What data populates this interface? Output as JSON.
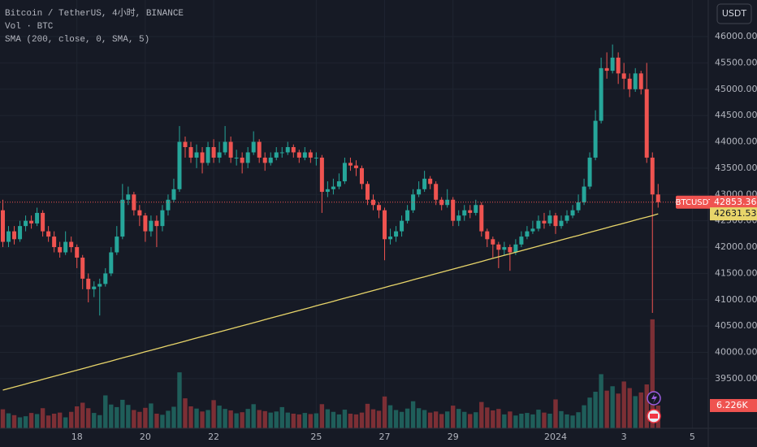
{
  "chart_data": {
    "type": "candlestick",
    "title": "Bitcoin / TetherUS, 4小时, BINANCE",
    "currency": "USDT",
    "symbol": "BTCUSDT",
    "up_color": "#26a69a",
    "down_color": "#ef5350",
    "open": [
      42700,
      42100,
      42300,
      42150,
      42400,
      42500,
      42450,
      42650,
      42300,
      42200,
      42000,
      41900,
      42100,
      42000,
      41800,
      41400,
      41200,
      41250,
      41300,
      41500,
      41900,
      42200,
      42900,
      43000,
      42700,
      42600,
      42300,
      42500,
      42400,
      42700,
      42900,
      43100,
      44000,
      43900,
      43700,
      43800,
      43600,
      43900,
      43700,
      43800,
      44000,
      43700,
      43700,
      43600,
      43800,
      44000,
      43700,
      43600,
      43700,
      43800,
      43800,
      43900,
      43800,
      43700,
      43800,
      43700,
      43700,
      43050,
      43100,
      43150,
      43250,
      43600,
      43550,
      43500,
      43200,
      42900,
      42800,
      42700,
      42150,
      42200,
      42300,
      42500,
      42700,
      43000,
      43100,
      43300,
      43200,
      42900,
      42800,
      42900,
      42500,
      42600,
      42700,
      42650,
      42800,
      42300,
      42150,
      42050,
      41950,
      42000,
      41900,
      42050,
      42200,
      42300,
      42350,
      42500,
      42450,
      42600,
      42400,
      42500,
      42600,
      42700,
      42850,
      43150,
      43700,
      44400,
      45400,
      45350,
      45600,
      45300,
      45200,
      45000,
      45300,
      45000,
      43700,
      43000
    ],
    "high": [
      42900,
      42400,
      42400,
      42500,
      42600,
      42600,
      42750,
      42700,
      42400,
      42300,
      42100,
      42300,
      42200,
      42050,
      41850,
      41500,
      41350,
      41400,
      41600,
      42000,
      42400,
      43200,
      43150,
      43050,
      42800,
      42650,
      42600,
      42600,
      42800,
      43000,
      43300,
      44300,
      44100,
      44000,
      43950,
      43900,
      44000,
      44050,
      44000,
      44300,
      44100,
      43850,
      43800,
      43900,
      44200,
      44050,
      43800,
      43800,
      43900,
      43900,
      44000,
      43950,
      43850,
      43900,
      43850,
      43800,
      43750,
      43250,
      43300,
      43400,
      43700,
      43700,
      43650,
      43550,
      43250,
      43000,
      42850,
      42750,
      42350,
      42400,
      42600,
      42800,
      43100,
      43250,
      43450,
      43350,
      43250,
      42950,
      43100,
      42950,
      42700,
      42800,
      42800,
      42900,
      42850,
      42350,
      42200,
      42100,
      42100,
      42050,
      42150,
      42300,
      42400,
      42500,
      42600,
      42650,
      42700,
      42650,
      42600,
      42700,
      42800,
      43000,
      43300,
      43800,
      44600,
      45600,
      45700,
      45850,
      45700,
      45500,
      45300,
      45400,
      45350,
      45500,
      43800,
      43200
    ],
    "low": [
      42000,
      42000,
      42050,
      42100,
      42300,
      42350,
      42400,
      42200,
      42100,
      41900,
      41800,
      41850,
      41900,
      41600,
      41200,
      40950,
      41050,
      40700,
      41250,
      41450,
      41850,
      42150,
      42800,
      42600,
      42400,
      42100,
      42200,
      42000,
      42300,
      42600,
      42850,
      43050,
      43700,
      43600,
      43500,
      43400,
      43550,
      43600,
      43600,
      43750,
      43600,
      43550,
      43400,
      43500,
      43750,
      43600,
      43450,
      43550,
      43650,
      43700,
      43750,
      43700,
      43600,
      43650,
      43600,
      43550,
      42650,
      42950,
      43000,
      43100,
      43200,
      43450,
      43350,
      43100,
      42800,
      42700,
      42550,
      41750,
      42050,
      42100,
      42200,
      42450,
      42650,
      42950,
      43050,
      43100,
      42800,
      42700,
      42750,
      42400,
      42400,
      42500,
      42550,
      42600,
      42200,
      42000,
      41800,
      41600,
      41850,
      41550,
      41850,
      42000,
      42150,
      42250,
      42300,
      42350,
      42400,
      42250,
      42350,
      42450,
      42550,
      42650,
      42800,
      43100,
      43650,
      44350,
      45200,
      45300,
      45100,
      45000,
      44850,
      44950,
      44900,
      43600,
      40750,
      42750
    ],
    "close": [
      42100,
      42300,
      42150,
      42400,
      42500,
      42450,
      42650,
      42300,
      42200,
      42000,
      41900,
      42100,
      42000,
      41800,
      41400,
      41200,
      41250,
      41300,
      41500,
      41900,
      42200,
      42900,
      43000,
      42700,
      42600,
      42300,
      42500,
      42400,
      42700,
      42900,
      43100,
      44000,
      43900,
      43700,
      43800,
      43600,
      43900,
      43700,
      43800,
      44000,
      43700,
      43700,
      43600,
      43800,
      44000,
      43700,
      43600,
      43700,
      43800,
      43800,
      43900,
      43800,
      43700,
      43800,
      43700,
      43700,
      43050,
      43100,
      43150,
      43250,
      43600,
      43550,
      43500,
      43200,
      42900,
      42800,
      42700,
      42150,
      42200,
      42300,
      42500,
      42700,
      43000,
      43100,
      43300,
      43200,
      42900,
      42800,
      42900,
      42500,
      42600,
      42700,
      42650,
      42800,
      42300,
      42150,
      42050,
      41950,
      42000,
      41900,
      42050,
      42200,
      42300,
      42350,
      42500,
      42450,
      42600,
      42400,
      42500,
      42600,
      42700,
      42850,
      43150,
      43700,
      44400,
      45400,
      45350,
      45600,
      45300,
      45200,
      45000,
      45300,
      45000,
      43700,
      43000,
      42853.36
    ],
    "xlim": [
      -0.5,
      123.8
    ],
    "xticks": [
      {
        "value": 13,
        "label": "18"
      },
      {
        "value": 25,
        "label": "20"
      },
      {
        "value": 37,
        "label": "22"
      },
      {
        "value": 55,
        "label": "25"
      },
      {
        "value": 67,
        "label": "27"
      },
      {
        "value": 79,
        "label": "29"
      },
      {
        "value": 97,
        "label": "2024"
      },
      {
        "value": 109,
        "label": "3"
      },
      {
        "value": 121,
        "label": "5"
      }
    ],
    "ylim": [
      38557,
      46695
    ],
    "yticks": [
      {
        "value": 39500,
        "label": "39500.00"
      },
      {
        "value": 40000,
        "label": "40000.00"
      },
      {
        "value": 40500,
        "label": "40500.00"
      },
      {
        "value": 41000,
        "label": "41000.00"
      },
      {
        "value": 41500,
        "label": "41500.00"
      },
      {
        "value": 42000,
        "label": "42000.00"
      },
      {
        "value": 42500,
        "label": "42500.00"
      },
      {
        "value": 43000,
        "label": "43000.00"
      },
      {
        "value": 43500,
        "label": "43500.00"
      },
      {
        "value": 44000,
        "label": "44000.00"
      },
      {
        "value": 44500,
        "label": "44500.00"
      },
      {
        "value": 45000,
        "label": "45000.00"
      },
      {
        "value": 45500,
        "label": "45500.00"
      },
      {
        "value": 46000,
        "label": "46000.00"
      }
    ],
    "grid": true,
    "last_price": 42853.36,
    "volume": {
      "legend": "Vol · BTC",
      "up_color": "#1f5e5a",
      "down_color": "#7c2f35",
      "ylim": [
        0,
        30000
      ],
      "last_value_label": "6.226K",
      "values": [
        5200,
        4100,
        3600,
        3000,
        3300,
        4200,
        3900,
        5500,
        3500,
        4000,
        4300,
        3000,
        4500,
        6000,
        7000,
        5500,
        4200,
        3600,
        9000,
        6500,
        5800,
        7800,
        6400,
        5000,
        4500,
        5600,
        6800,
        4000,
        3700,
        4800,
        5900,
        15300,
        8200,
        6000,
        5400,
        4600,
        5000,
        7700,
        6200,
        5300,
        4900,
        4100,
        4400,
        5300,
        6600,
        5000,
        4700,
        4300,
        4600,
        5800,
        4300,
        4000,
        3800,
        4200,
        3900,
        4100,
        6600,
        5200,
        4500,
        3800,
        5100,
        4000,
        3800,
        4300,
        6700,
        5200,
        4800,
        8700,
        6300,
        5000,
        4500,
        5400,
        7400,
        5500,
        5000,
        4300,
        4600,
        3900,
        4600,
        6200,
        5300,
        4500,
        3900,
        4400,
        7200,
        5700,
        4900,
        5300,
        3800,
        4600,
        3500,
        4000,
        4200,
        3800,
        5100,
        4300,
        4000,
        7900,
        4700,
        3800,
        3500,
        4400,
        6300,
        8400,
        10000,
        14800,
        10300,
        11500,
        9500,
        12800,
        11000,
        8800,
        9800,
        12000,
        29800,
        6226
      ]
    },
    "sma": {
      "legend": "SMA (200, close, 0, SMA, 5)",
      "color": "#e8d56a",
      "values": [
        39283,
        39312,
        39341,
        39370,
        39399,
        39429,
        39458,
        39487,
        39516,
        39545,
        39574,
        39603,
        39632,
        39661,
        39690,
        39720,
        39749,
        39778,
        39807,
        39836,
        39865,
        39894,
        39923,
        39952,
        39981,
        40011,
        40040,
        40069,
        40098,
        40127,
        40156,
        40185,
        40214,
        40243,
        40272,
        40302,
        40331,
        40360,
        40389,
        40418,
        40447,
        40476,
        40505,
        40534,
        40563,
        40593,
        40622,
        40651,
        40680,
        40709,
        40738,
        40767,
        40796,
        40825,
        40854,
        40884,
        40913,
        40942,
        40971,
        41000,
        41029,
        41058,
        41087,
        41116,
        41145,
        41175,
        41204,
        41233,
        41262,
        41291,
        41320,
        41349,
        41378,
        41407,
        41436,
        41466,
        41495,
        41524,
        41553,
        41582,
        41611,
        41640,
        41669,
        41698,
        41727,
        41757,
        41786,
        41815,
        41844,
        41873,
        41902,
        41931,
        41960,
        41989,
        42018,
        42048,
        42077,
        42106,
        42135,
        42164,
        42193,
        42222,
        42251,
        42280,
        42309,
        42339,
        42368,
        42397,
        42426,
        42455,
        42484,
        42513,
        42542,
        42571,
        42600,
        42631.53
      ]
    }
  }
}
